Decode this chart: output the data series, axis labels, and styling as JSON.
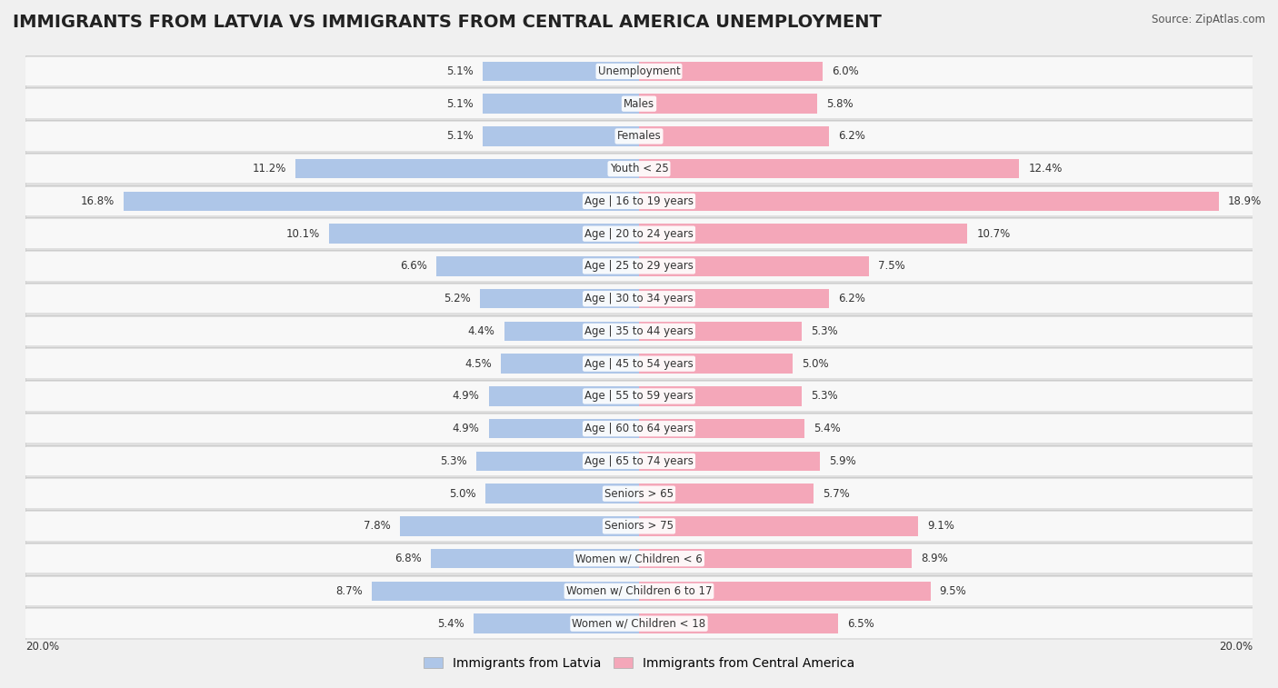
{
  "title": "IMMIGRANTS FROM LATVIA VS IMMIGRANTS FROM CENTRAL AMERICA UNEMPLOYMENT",
  "source": "Source: ZipAtlas.com",
  "categories": [
    "Unemployment",
    "Males",
    "Females",
    "Youth < 25",
    "Age | 16 to 19 years",
    "Age | 20 to 24 years",
    "Age | 25 to 29 years",
    "Age | 30 to 34 years",
    "Age | 35 to 44 years",
    "Age | 45 to 54 years",
    "Age | 55 to 59 years",
    "Age | 60 to 64 years",
    "Age | 65 to 74 years",
    "Seniors > 65",
    "Seniors > 75",
    "Women w/ Children < 6",
    "Women w/ Children 6 to 17",
    "Women w/ Children < 18"
  ],
  "latvia_values": [
    5.1,
    5.1,
    5.1,
    11.2,
    16.8,
    10.1,
    6.6,
    5.2,
    4.4,
    4.5,
    4.9,
    4.9,
    5.3,
    5.0,
    7.8,
    6.8,
    8.7,
    5.4
  ],
  "central_america_values": [
    6.0,
    5.8,
    6.2,
    12.4,
    18.9,
    10.7,
    7.5,
    6.2,
    5.3,
    5.0,
    5.3,
    5.4,
    5.9,
    5.7,
    9.1,
    8.9,
    9.5,
    6.5
  ],
  "latvia_color": "#aec6e8",
  "central_america_color": "#f4a7b9",
  "background_color": "#f0f0f0",
  "row_outer_color": "#e0e0e0",
  "row_inner_color": "#f8f8f8",
  "max_value": 20.0,
  "bar_height": 0.6,
  "title_fontsize": 14,
  "label_fontsize": 8.5,
  "value_fontsize": 8.5,
  "legend_fontsize": 10,
  "bottom_label": "20.0%"
}
